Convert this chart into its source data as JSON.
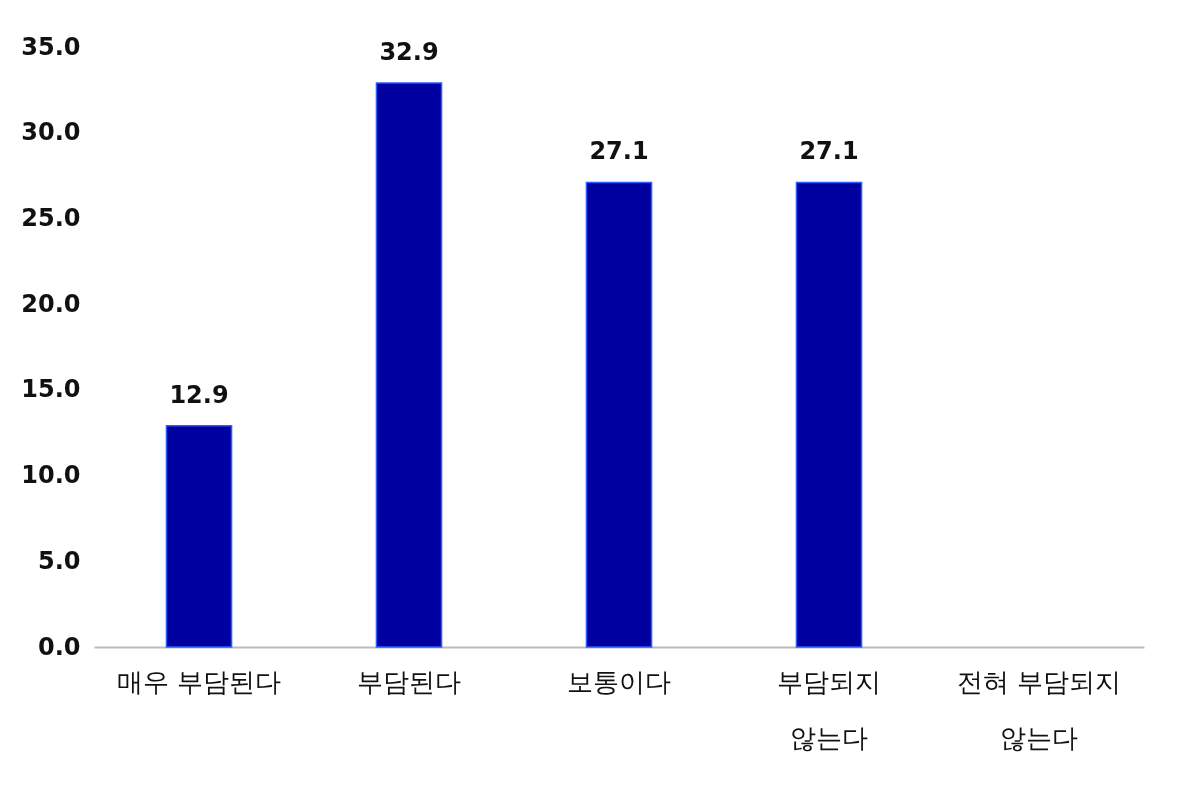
{
  "chart_data": {
    "type": "bar",
    "categories": [
      "매우 부담된다",
      "부담된다",
      "보통이다",
      "부담되지 않는다",
      "전혀 부담되지 않는다"
    ],
    "values": [
      12.9,
      32.9,
      27.1,
      27.1,
      null
    ],
    "value_labels": [
      "12.9",
      "32.9",
      "27.1",
      "27.1",
      null
    ],
    "color": "#0000a0",
    "ylim": [
      0,
      35
    ],
    "yticks": [
      {
        "value": 0,
        "label": "0.0"
      },
      {
        "value": 5,
        "label": "5.0"
      },
      {
        "value": 10,
        "label": "10.0"
      },
      {
        "value": 15,
        "label": "15.0"
      },
      {
        "value": 20,
        "label": "20.0"
      },
      {
        "value": 25,
        "label": "25.0"
      },
      {
        "value": 30,
        "label": "30.0"
      },
      {
        "value": 35,
        "label": "35.0"
      }
    ],
    "grid": false
  }
}
